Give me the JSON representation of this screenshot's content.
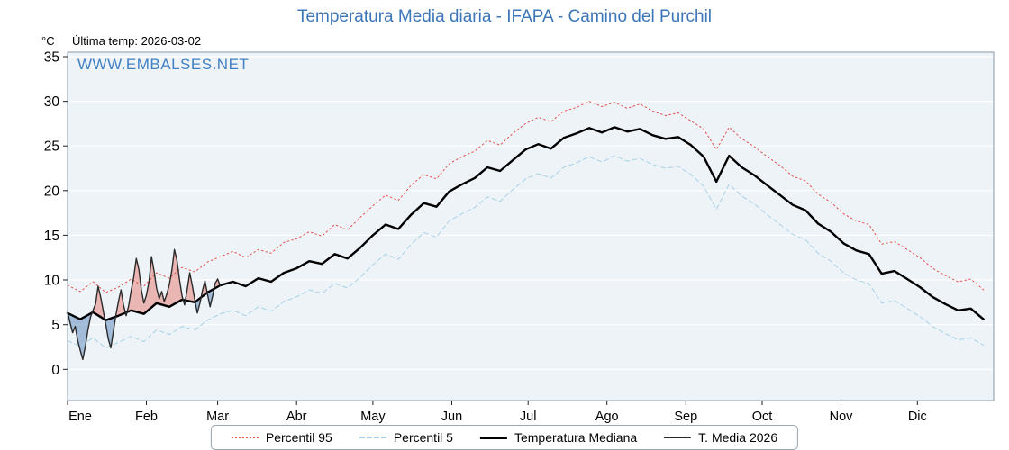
{
  "page": {
    "title": "Temperatura Media diaria - IFAPA - Camino del Purchil",
    "unit_label": "°C",
    "last_temp_label": "Última temp: 2026-03-02",
    "watermark": "WWW.EMBALSES.NET"
  },
  "legend": [
    {
      "label": "Percentil 95"
    },
    {
      "label": "Percentil 5"
    },
    {
      "label": "Temperatura Mediana"
    },
    {
      "label": "T. Media 2026"
    }
  ],
  "chart_data": {
    "type": "line",
    "title": "Temperatura Media diaria - IFAPA - Camino del Purchil",
    "xlabel": "",
    "ylabel": "°C",
    "ylim": [
      -3.5,
      35.5
    ],
    "yticks": [
      0,
      5,
      10,
      15,
      20,
      25,
      30,
      35
    ],
    "grid": "horizontal",
    "legend_position": "bottom",
    "months": [
      {
        "label": "Ene",
        "day": 1
      },
      {
        "label": "Feb",
        "day": 32
      },
      {
        "label": "Mar",
        "day": 60
      },
      {
        "label": "Abr",
        "day": 91
      },
      {
        "label": "May",
        "day": 121
      },
      {
        "label": "Jun",
        "day": 152
      },
      {
        "label": "Jul",
        "day": 182
      },
      {
        "label": "Ago",
        "day": 213
      },
      {
        "label": "Sep",
        "day": 244
      },
      {
        "label": "Oct",
        "day": 274
      },
      {
        "label": "Nov",
        "day": 305
      },
      {
        "label": "Dic",
        "day": 335
      }
    ],
    "x_days": [
      1,
      6,
      11,
      16,
      21,
      26,
      31,
      36,
      41,
      46,
      51,
      56,
      61,
      66,
      71,
      76,
      81,
      86,
      91,
      96,
      101,
      106,
      111,
      116,
      121,
      126,
      131,
      136,
      141,
      146,
      151,
      156,
      161,
      166,
      171,
      176,
      181,
      186,
      191,
      196,
      201,
      206,
      211,
      216,
      221,
      226,
      231,
      236,
      241,
      246,
      251,
      256,
      261,
      266,
      271,
      276,
      281,
      286,
      291,
      296,
      301,
      306,
      311,
      316,
      321,
      326,
      331,
      336,
      341,
      346,
      351,
      356,
      361
    ],
    "series": [
      {
        "name": "Percentil 95",
        "color": "#e2524a",
        "dash": "dotted",
        "width": 1,
        "values": [
          9.4,
          8.7,
          9.8,
          8.6,
          9.2,
          10.1,
          9.3,
          10.8,
          10.2,
          11.4,
          10.9,
          12.0,
          12.6,
          13.2,
          12.5,
          13.4,
          13.0,
          14.2,
          14.6,
          15.4,
          14.9,
          16.2,
          15.6,
          17.0,
          18.3,
          19.5,
          18.9,
          20.6,
          21.8,
          21.3,
          23.0,
          23.8,
          24.4,
          25.6,
          25.1,
          26.4,
          27.5,
          28.2,
          27.7,
          28.9,
          29.3,
          30.0,
          29.4,
          29.9,
          29.2,
          29.7,
          28.9,
          28.4,
          28.7,
          27.8,
          26.9,
          24.6,
          27.1,
          25.8,
          24.9,
          23.8,
          22.8,
          21.6,
          21.1,
          19.6,
          18.7,
          17.4,
          16.6,
          16.2,
          14.0,
          14.3,
          13.4,
          12.5,
          11.3,
          10.5,
          9.8,
          10.1,
          8.9
        ]
      },
      {
        "name": "Percentil 5",
        "color": "#a6d1e6",
        "dash": "dashed",
        "width": 1,
        "values": [
          3.2,
          2.6,
          3.5,
          2.4,
          3.0,
          3.7,
          3.1,
          4.4,
          3.9,
          4.8,
          4.4,
          5.5,
          6.2,
          6.6,
          6.0,
          7.0,
          6.5,
          7.6,
          8.1,
          8.9,
          8.5,
          9.6,
          9.1,
          10.3,
          11.7,
          12.9,
          12.3,
          14.0,
          15.3,
          14.8,
          16.6,
          17.4,
          18.1,
          19.3,
          18.8,
          20.1,
          21.3,
          21.9,
          21.4,
          22.6,
          23.1,
          23.8,
          23.2,
          23.9,
          23.3,
          23.6,
          22.9,
          22.5,
          22.7,
          21.8,
          20.5,
          17.9,
          20.7,
          19.4,
          18.5,
          17.3,
          16.2,
          15.1,
          14.5,
          13.0,
          12.1,
          10.8,
          10.0,
          9.6,
          7.4,
          7.7,
          6.8,
          5.9,
          4.8,
          4.0,
          3.3,
          3.5,
          2.7
        ]
      },
      {
        "name": "Temperatura Mediana",
        "color": "#000000",
        "dash": "solid",
        "width": 2.4,
        "values": [
          6.3,
          5.6,
          6.4,
          5.5,
          6.0,
          6.6,
          6.2,
          7.4,
          7.0,
          7.8,
          7.5,
          8.6,
          9.4,
          9.8,
          9.3,
          10.2,
          9.8,
          10.8,
          11.3,
          12.1,
          11.8,
          12.9,
          12.4,
          13.6,
          15.0,
          16.2,
          15.7,
          17.3,
          18.6,
          18.2,
          19.9,
          20.7,
          21.4,
          22.6,
          22.2,
          23.4,
          24.6,
          25.2,
          24.7,
          25.9,
          26.4,
          27.0,
          26.5,
          27.1,
          26.6,
          26.9,
          26.2,
          25.8,
          26.0,
          25.1,
          23.8,
          21.0,
          23.9,
          22.6,
          21.7,
          20.6,
          19.5,
          18.4,
          17.8,
          16.3,
          15.4,
          14.1,
          13.3,
          12.9,
          10.7,
          11.0,
          10.1,
          9.2,
          8.1,
          7.3,
          6.6,
          6.8,
          5.6
        ]
      }
    ],
    "current_year": {
      "name": "T. Media 2026",
      "color": "#2a2a2a",
      "width": 1.4,
      "start_day": 1,
      "values": [
        6.4,
        5.2,
        4.1,
        4.8,
        3.2,
        2.1,
        1.1,
        2.6,
        4.4,
        5.8,
        6.6,
        7.3,
        9.3,
        8.1,
        6.6,
        5.0,
        3.4,
        2.4,
        4.2,
        6.1,
        7.6,
        8.9,
        7.2,
        6.0,
        7.1,
        8.8,
        10.3,
        12.4,
        11.2,
        8.9,
        7.4,
        8.3,
        9.8,
        12.6,
        11.0,
        9.1,
        7.9,
        8.7,
        7.6,
        8.4,
        9.5,
        11.1,
        13.4,
        12.2,
        10.0,
        8.2,
        7.2,
        8.9,
        10.8,
        9.4,
        7.8,
        6.3,
        7.4,
        8.8,
        9.9,
        8.4,
        7.0,
        8.2,
        9.6,
        10.1,
        9.3
      ]
    },
    "colors": {
      "fill_above": "#e8837b",
      "fill_below": "#6e96c3",
      "plot_bg": "#eef3f8",
      "grid": "#ffffff",
      "title": "#3c76b8",
      "watermark": "#4080c4"
    }
  }
}
